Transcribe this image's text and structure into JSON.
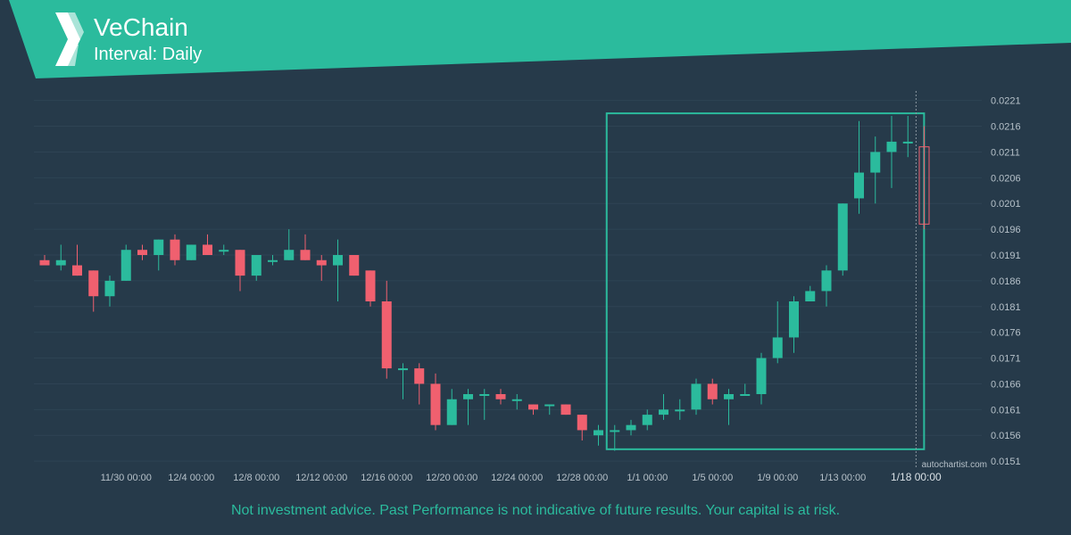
{
  "header": {
    "title": "VeChain",
    "subtitle": "Interval: Daily"
  },
  "colors": {
    "accent": "#2bbb9d",
    "background": "#263a4a",
    "up": "#2bbb9d",
    "down": "#f0606f",
    "text": "#b6c1c9"
  },
  "footer": {
    "disclaimer": "Not investment advice. Past Performance is not indicative of future results. Your capital is at risk."
  },
  "watermark": "autochartist.com",
  "chart_data": {
    "type": "candlestick",
    "ylim": [
      0.01505,
      0.02225
    ],
    "y_ticks": [
      "0.0221",
      "0.0216",
      "0.0211",
      "0.0206",
      "0.0201",
      "0.0196",
      "0.0191",
      "0.0186",
      "0.0181",
      "0.0176",
      "0.0171",
      "0.0166",
      "0.0161",
      "0.0156",
      "0.0151"
    ],
    "x_tick_labels": [
      {
        "label": "11/30 00:00",
        "index": 5
      },
      {
        "label": "12/4 00:00",
        "index": 9
      },
      {
        "label": "12/8 00:00",
        "index": 13
      },
      {
        "label": "12/12 00:00",
        "index": 17
      },
      {
        "label": "12/16 00:00",
        "index": 21
      },
      {
        "label": "12/20 00:00",
        "index": 25
      },
      {
        "label": "12/24 00:00",
        "index": 29
      },
      {
        "label": "12/28 00:00",
        "index": 33
      },
      {
        "label": "1/1 00:00",
        "index": 37
      },
      {
        "label": "1/5 00:00",
        "index": 41
      },
      {
        "label": "1/9 00:00",
        "index": 45
      },
      {
        "label": "1/13 00:00",
        "index": 49
      },
      {
        "label": "1/18 00:00",
        "index": 53.5
      }
    ],
    "candles": [
      {
        "date": "11/25",
        "o": 0.019,
        "h": 0.0191,
        "l": 0.0189,
        "c": 0.0189
      },
      {
        "date": "11/26",
        "o": 0.0189,
        "h": 0.0193,
        "l": 0.0188,
        "c": 0.019
      },
      {
        "date": "11/27",
        "o": 0.0189,
        "h": 0.0193,
        "l": 0.0187,
        "c": 0.0187
      },
      {
        "date": "11/28",
        "o": 0.0188,
        "h": 0.0188,
        "l": 0.018,
        "c": 0.0183
      },
      {
        "date": "11/29",
        "o": 0.0183,
        "h": 0.0187,
        "l": 0.0181,
        "c": 0.0186
      },
      {
        "date": "11/30",
        "o": 0.0186,
        "h": 0.0193,
        "l": 0.0186,
        "c": 0.0192
      },
      {
        "date": "12/1",
        "o": 0.0192,
        "h": 0.0193,
        "l": 0.019,
        "c": 0.0191
      },
      {
        "date": "12/2",
        "o": 0.0191,
        "h": 0.0194,
        "l": 0.0188,
        "c": 0.0194
      },
      {
        "date": "12/3",
        "o": 0.0194,
        "h": 0.0195,
        "l": 0.0189,
        "c": 0.019
      },
      {
        "date": "12/4",
        "o": 0.019,
        "h": 0.0193,
        "l": 0.019,
        "c": 0.0193
      },
      {
        "date": "12/5",
        "o": 0.0193,
        "h": 0.0195,
        "l": 0.0191,
        "c": 0.0191
      },
      {
        "date": "12/6",
        "o": 0.0192,
        "h": 0.0193,
        "l": 0.0191,
        "c": 0.0192
      },
      {
        "date": "12/7",
        "o": 0.0192,
        "h": 0.0192,
        "l": 0.0184,
        "c": 0.0187
      },
      {
        "date": "12/8",
        "o": 0.0187,
        "h": 0.0191,
        "l": 0.0186,
        "c": 0.0191
      },
      {
        "date": "12/9",
        "o": 0.019,
        "h": 0.0191,
        "l": 0.0189,
        "c": 0.019
      },
      {
        "date": "12/10",
        "o": 0.019,
        "h": 0.0196,
        "l": 0.019,
        "c": 0.0192
      },
      {
        "date": "12/11",
        "o": 0.0192,
        "h": 0.0195,
        "l": 0.019,
        "c": 0.019
      },
      {
        "date": "12/12",
        "o": 0.019,
        "h": 0.0191,
        "l": 0.0186,
        "c": 0.0189
      },
      {
        "date": "12/13",
        "o": 0.0189,
        "h": 0.0194,
        "l": 0.0182,
        "c": 0.0191
      },
      {
        "date": "12/14",
        "o": 0.0191,
        "h": 0.0191,
        "l": 0.0187,
        "c": 0.0187
      },
      {
        "date": "12/15",
        "o": 0.0188,
        "h": 0.0188,
        "l": 0.0181,
        "c": 0.0182
      },
      {
        "date": "12/16",
        "o": 0.0182,
        "h": 0.0186,
        "l": 0.0167,
        "c": 0.0169
      },
      {
        "date": "12/17",
        "o": 0.0169,
        "h": 0.017,
        "l": 0.0163,
        "c": 0.0169
      },
      {
        "date": "12/18",
        "o": 0.0169,
        "h": 0.017,
        "l": 0.0162,
        "c": 0.0166
      },
      {
        "date": "12/19",
        "o": 0.0166,
        "h": 0.0168,
        "l": 0.0157,
        "c": 0.0158
      },
      {
        "date": "12/20",
        "o": 0.0158,
        "h": 0.0165,
        "l": 0.0158,
        "c": 0.0163
      },
      {
        "date": "12/21",
        "o": 0.0163,
        "h": 0.0165,
        "l": 0.0158,
        "c": 0.0164
      },
      {
        "date": "12/22",
        "o": 0.0164,
        "h": 0.0165,
        "l": 0.0159,
        "c": 0.0164
      },
      {
        "date": "12/23",
        "o": 0.0164,
        "h": 0.0165,
        "l": 0.0162,
        "c": 0.0163
      },
      {
        "date": "12/24",
        "o": 0.0163,
        "h": 0.0164,
        "l": 0.0161,
        "c": 0.0163
      },
      {
        "date": "12/25",
        "o": 0.0162,
        "h": 0.0162,
        "l": 0.016,
        "c": 0.0161
      },
      {
        "date": "12/26",
        "o": 0.0162,
        "h": 0.0162,
        "l": 0.016,
        "c": 0.0162
      },
      {
        "date": "12/27",
        "o": 0.0162,
        "h": 0.0162,
        "l": 0.016,
        "c": 0.016
      },
      {
        "date": "12/28",
        "o": 0.016,
        "h": 0.016,
        "l": 0.0155,
        "c": 0.0157
      },
      {
        "date": "12/29",
        "o": 0.0156,
        "h": 0.0158,
        "l": 0.0154,
        "c": 0.0157
      },
      {
        "date": "12/30",
        "o": 0.0157,
        "h": 0.0158,
        "l": 0.0153,
        "c": 0.0157
      },
      {
        "date": "12/31",
        "o": 0.0157,
        "h": 0.0159,
        "l": 0.0156,
        "c": 0.0158
      },
      {
        "date": "1/1",
        "o": 0.0158,
        "h": 0.0161,
        "l": 0.0157,
        "c": 0.016
      },
      {
        "date": "1/2",
        "o": 0.016,
        "h": 0.0164,
        "l": 0.0159,
        "c": 0.0161
      },
      {
        "date": "1/3",
        "o": 0.0161,
        "h": 0.0163,
        "l": 0.0159,
        "c": 0.0161
      },
      {
        "date": "1/4",
        "o": 0.0161,
        "h": 0.0167,
        "l": 0.016,
        "c": 0.0166
      },
      {
        "date": "1/5",
        "o": 0.0166,
        "h": 0.0167,
        "l": 0.0162,
        "c": 0.0163
      },
      {
        "date": "1/6",
        "o": 0.0163,
        "h": 0.0165,
        "l": 0.0158,
        "c": 0.0164
      },
      {
        "date": "1/7",
        "o": 0.0164,
        "h": 0.0166,
        "l": 0.0164,
        "c": 0.0164
      },
      {
        "date": "1/8",
        "o": 0.0164,
        "h": 0.0172,
        "l": 0.0162,
        "c": 0.0171
      },
      {
        "date": "1/9",
        "o": 0.0171,
        "h": 0.0182,
        "l": 0.017,
        "c": 0.0175
      },
      {
        "date": "1/10",
        "o": 0.0175,
        "h": 0.0183,
        "l": 0.0172,
        "c": 0.0182
      },
      {
        "date": "1/11",
        "o": 0.0182,
        "h": 0.0185,
        "l": 0.0182,
        "c": 0.0184
      },
      {
        "date": "1/12",
        "o": 0.0184,
        "h": 0.0189,
        "l": 0.0181,
        "c": 0.0188
      },
      {
        "date": "1/13",
        "o": 0.0188,
        "h": 0.0201,
        "l": 0.0187,
        "c": 0.0201
      },
      {
        "date": "1/14",
        "o": 0.0202,
        "h": 0.0217,
        "l": 0.0199,
        "c": 0.0207
      },
      {
        "date": "1/15",
        "o": 0.0207,
        "h": 0.0214,
        "l": 0.0201,
        "c": 0.0211
      },
      {
        "date": "1/16",
        "o": 0.0211,
        "h": 0.0218,
        "l": 0.0204,
        "c": 0.0213
      },
      {
        "date": "1/17",
        "o": 0.0213,
        "h": 0.0218,
        "l": 0.021,
        "c": 0.0213
      },
      {
        "date": "1/18",
        "o": 0.0212,
        "h": 0.0216,
        "l": 0.0196,
        "c": 0.0197,
        "forming": true
      }
    ],
    "highlight_box": {
      "from_index": 35,
      "to_index": 53.5,
      "y_top": 0.02185,
      "y_bottom": 0.01533
    },
    "current_marker_index": 53.5
  }
}
